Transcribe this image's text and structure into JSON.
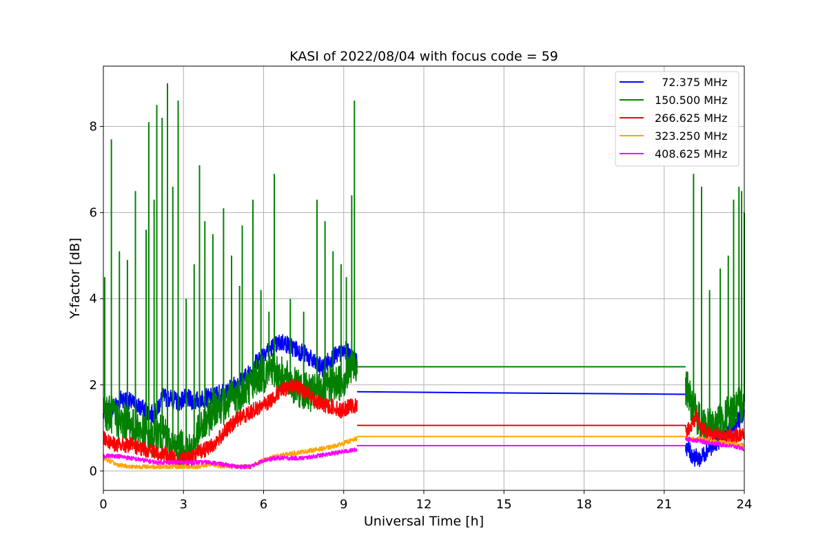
{
  "chart_data": {
    "type": "line",
    "title": "KASI of 2022/08/04 with focus code = 59",
    "xlabel": "Universal Time [h]",
    "ylabel": "Y-factor [dB]",
    "xlim": [
      0,
      24
    ],
    "ylim": [
      -0.45,
      9.4
    ],
    "xticks": [
      0,
      3,
      6,
      9,
      12,
      15,
      18,
      21,
      24
    ],
    "yticks": [
      0,
      2,
      4,
      6,
      8
    ],
    "grid": true,
    "legend_position": "top-right",
    "series": [
      {
        "name": "  72.375 MHz",
        "color": "#0000ff",
        "segments": [
          {
            "x": [
              0,
              0.2,
              0.4,
              0.7,
              1.0,
              1.3,
              1.6,
              1.9,
              2.2,
              2.5,
              2.8,
              3.1,
              3.4,
              3.7,
              4.0,
              4.3,
              4.6,
              4.9,
              5.2,
              5.5,
              5.8,
              6.1,
              6.4,
              6.7,
              7.0,
              7.3,
              7.6,
              7.9,
              8.2,
              8.5,
              8.8,
              9.1,
              9.3,
              9.5
            ],
            "y": [
              1.3,
              1.4,
              1.5,
              1.7,
              1.6,
              1.5,
              1.4,
              1.3,
              1.7,
              1.7,
              1.6,
              1.7,
              1.6,
              1.7,
              1.7,
              1.8,
              1.8,
              2.0,
              2.1,
              2.3,
              2.6,
              2.8,
              2.9,
              3.0,
              2.9,
              2.8,
              2.7,
              2.5,
              2.4,
              2.6,
              2.7,
              2.8,
              2.6,
              2.5
            ]
          },
          {
            "x": [
              9.5,
              21.8
            ],
            "y": [
              1.84,
              1.78
            ]
          },
          {
            "x": [
              21.8,
              22.0,
              22.2,
              22.4,
              22.6,
              22.8,
              23.0,
              23.2,
              23.4,
              23.6,
              23.8,
              24.0
            ],
            "y": [
              0.6,
              0.4,
              0.3,
              0.3,
              0.5,
              0.6,
              0.7,
              0.8,
              0.9,
              1.0,
              1.2,
              1.3
            ]
          }
        ]
      },
      {
        "name": "150.500 MHz",
        "color": "#008000",
        "segments": [
          {
            "x": [
              0.0,
              0.1,
              0.3,
              0.5,
              0.7,
              0.9,
              1.1,
              1.3,
              1.5,
              1.7,
              1.9,
              2.1,
              2.3,
              2.5,
              2.7,
              2.9,
              3.1,
              3.3,
              3.5,
              3.7,
              3.9,
              4.1,
              4.3,
              4.5,
              4.7,
              4.9,
              5.1,
              5.3,
              5.5,
              5.7,
              5.9,
              6.1,
              6.3,
              6.5,
              6.7,
              6.9,
              7.1,
              7.3,
              7.5,
              7.7,
              7.9,
              8.1,
              8.3,
              8.5,
              8.7,
              8.9,
              9.1,
              9.3,
              9.5
            ],
            "y": [
              1.6,
              1.4,
              1.3,
              1.2,
              1.1,
              1.2,
              1.0,
              1.0,
              0.9,
              0.8,
              0.7,
              0.9,
              0.8,
              0.6,
              0.5,
              0.5,
              0.6,
              0.4,
              0.8,
              1.0,
              1.2,
              1.4,
              1.6,
              1.5,
              1.6,
              1.7,
              1.8,
              1.9,
              2.0,
              2.2,
              2.2,
              2.3,
              2.4,
              2.3,
              2.2,
              2.1,
              2.0,
              1.9,
              1.9,
              1.8,
              1.8,
              1.9,
              1.9,
              2.0,
              2.0,
              2.1,
              2.2,
              2.4,
              2.5
            ]
          },
          {
            "x": [
              9.5,
              21.8
            ],
            "y": [
              2.42,
              2.42
            ]
          },
          {
            "x": [
              21.8,
              22.0,
              22.2,
              22.4,
              22.6,
              22.8,
              23.0,
              23.2,
              23.4,
              23.6,
              23.8,
              24.0
            ],
            "y": [
              2.0,
              1.6,
              1.3,
              1.1,
              1.0,
              1.0,
              1.1,
              1.2,
              1.3,
              1.4,
              1.5,
              1.6
            ]
          }
        ],
        "spikes": [
          [
            0.05,
            4.5
          ],
          [
            0.3,
            7.7
          ],
          [
            0.6,
            5.1
          ],
          [
            0.9,
            4.9
          ],
          [
            1.2,
            6.5
          ],
          [
            1.6,
            5.6
          ],
          [
            1.7,
            8.1
          ],
          [
            1.9,
            6.3
          ],
          [
            2.0,
            8.5
          ],
          [
            2.2,
            8.2
          ],
          [
            2.4,
            9.0
          ],
          [
            2.6,
            6.6
          ],
          [
            2.8,
            8.6
          ],
          [
            3.1,
            4.0
          ],
          [
            3.4,
            4.8
          ],
          [
            3.6,
            7.1
          ],
          [
            3.8,
            5.8
          ],
          [
            4.1,
            5.5
          ],
          [
            4.5,
            6.1
          ],
          [
            4.8,
            5.0
          ],
          [
            5.1,
            4.3
          ],
          [
            5.2,
            5.7
          ],
          [
            5.6,
            6.3
          ],
          [
            5.9,
            4.2
          ],
          [
            6.2,
            3.7
          ],
          [
            6.4,
            6.9
          ],
          [
            7.0,
            4.0
          ],
          [
            7.5,
            3.7
          ],
          [
            8.0,
            6.3
          ],
          [
            8.3,
            5.8
          ],
          [
            8.6,
            5.1
          ],
          [
            8.9,
            4.8
          ],
          [
            9.1,
            4.5
          ],
          [
            9.3,
            6.4
          ],
          [
            9.4,
            8.6
          ],
          [
            22.1,
            6.9
          ],
          [
            22.4,
            6.6
          ],
          [
            22.7,
            4.2
          ],
          [
            23.1,
            4.7
          ],
          [
            23.4,
            5.0
          ],
          [
            23.6,
            6.3
          ],
          [
            23.8,
            6.6
          ],
          [
            23.9,
            6.5
          ],
          [
            24.0,
            6.0
          ]
        ]
      },
      {
        "name": "266.625 MHz",
        "color": "#ff0000",
        "segments": [
          {
            "x": [
              0.0,
              0.2,
              0.5,
              0.8,
              1.1,
              1.4,
              1.7,
              2.0,
              2.3,
              2.6,
              2.9,
              3.2,
              3.5,
              3.8,
              4.1,
              4.4,
              4.7,
              5.0,
              5.3,
              5.6,
              5.9,
              6.2,
              6.5,
              6.8,
              7.1,
              7.4,
              7.7,
              8.0,
              8.3,
              8.6,
              8.9,
              9.2,
              9.5
            ],
            "y": [
              0.8,
              0.7,
              0.6,
              0.6,
              0.6,
              0.5,
              0.5,
              0.4,
              0.4,
              0.3,
              0.3,
              0.3,
              0.4,
              0.5,
              0.6,
              0.8,
              1.0,
              1.2,
              1.3,
              1.4,
              1.5,
              1.6,
              1.8,
              1.9,
              2.0,
              1.9,
              1.8,
              1.6,
              1.5,
              1.5,
              1.4,
              1.5,
              1.5
            ]
          },
          {
            "x": [
              9.5,
              21.8
            ],
            "y": [
              1.06,
              1.06
            ]
          },
          {
            "x": [
              21.8,
              22.0,
              22.2,
              22.4,
              22.6,
              22.8,
              23.0,
              23.2,
              23.4,
              23.6,
              23.8,
              24.0
            ],
            "y": [
              0.9,
              1.0,
              1.3,
              1.0,
              0.9,
              0.85,
              0.85,
              0.8,
              0.8,
              0.8,
              0.85,
              0.85
            ]
          }
        ]
      },
      {
        "name": "323.250 MHz",
        "color": "#ffa500",
        "segments": [
          {
            "x": [
              0.0,
              0.5,
              1.0,
              1.5,
              2.0,
              2.5,
              3.0,
              3.5,
              4.0,
              4.5,
              5.0,
              5.5,
              6.0,
              6.5,
              7.0,
              7.5,
              8.0,
              8.5,
              9.0,
              9.5
            ],
            "y": [
              0.3,
              0.15,
              0.1,
              0.1,
              0.1,
              0.1,
              0.1,
              0.1,
              0.15,
              0.1,
              0.1,
              0.1,
              0.25,
              0.35,
              0.4,
              0.45,
              0.5,
              0.55,
              0.65,
              0.75
            ]
          },
          {
            "x": [
              9.5,
              21.8
            ],
            "y": [
              0.8,
              0.8
            ]
          },
          {
            "x": [
              21.8,
              22.3,
              22.8,
              23.3,
              23.8,
              24.0
            ],
            "y": [
              0.75,
              0.75,
              0.7,
              0.65,
              0.6,
              0.6
            ]
          }
        ]
      },
      {
        "name": "408.625 MHz",
        "color": "#ff00ff",
        "segments": [
          {
            "x": [
              0.0,
              0.5,
              1.0,
              1.5,
              2.0,
              2.5,
              3.0,
              3.5,
              4.0,
              4.5,
              5.0,
              5.5,
              6.0,
              6.5,
              7.0,
              7.5,
              8.0,
              8.5,
              9.0,
              9.5
            ],
            "y": [
              0.35,
              0.35,
              0.3,
              0.25,
              0.2,
              0.2,
              0.2,
              0.2,
              0.2,
              0.15,
              0.1,
              0.1,
              0.25,
              0.3,
              0.3,
              0.3,
              0.35,
              0.4,
              0.45,
              0.5
            ]
          },
          {
            "x": [
              9.5,
              21.8
            ],
            "y": [
              0.59,
              0.59
            ]
          },
          {
            "x": [
              21.8,
              22.3,
              22.8,
              23.3,
              23.8,
              24.0
            ],
            "y": [
              0.75,
              0.7,
              0.65,
              0.6,
              0.55,
              0.5
            ]
          }
        ]
      }
    ]
  }
}
